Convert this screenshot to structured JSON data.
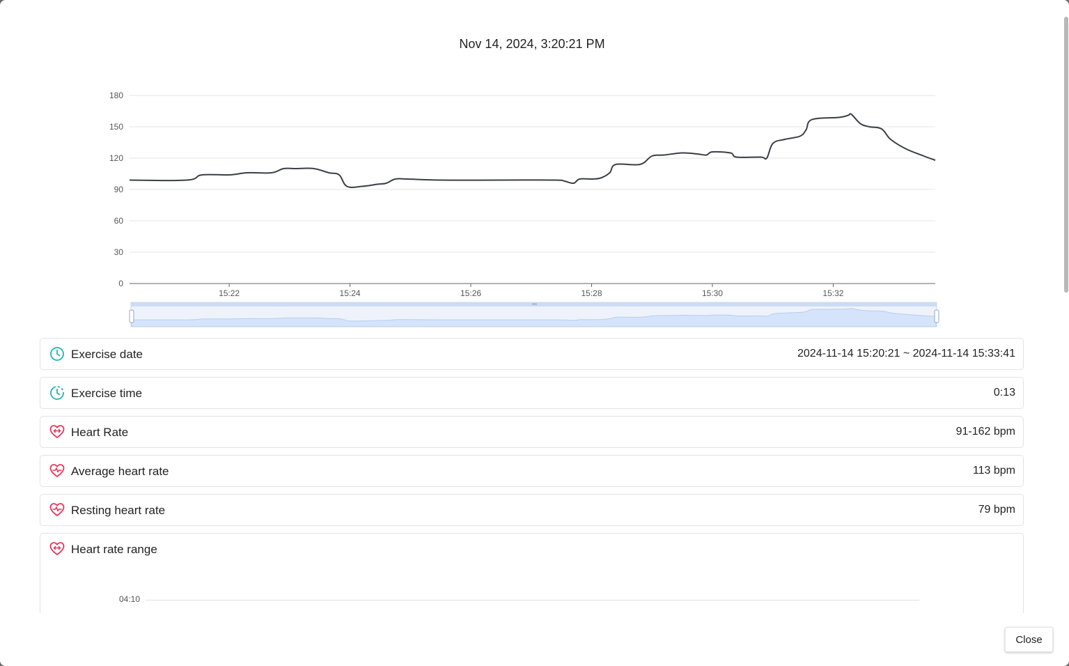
{
  "modal": {
    "title": "Nov 14, 2024, 3:20:21 PM",
    "close_label": "Close"
  },
  "colors": {
    "line": "#3b3e45",
    "grid": "#e4e4e4",
    "teal_icon": "#1fb5b0",
    "heart_icon": "#e8345a",
    "zoom_fill": "#d5e4fa",
    "zoom_border": "#b6cdf0"
  },
  "chart_data": {
    "type": "line",
    "y_ticks": [
      "0",
      "30",
      "60",
      "90",
      "120",
      "150",
      "180"
    ],
    "x_ticks": [
      "15:22",
      "15:24",
      "15:26",
      "15:28",
      "15:30",
      "15:32"
    ],
    "ylim": [
      0,
      180
    ],
    "xlim_minutes": [
      20.35,
      33.69
    ],
    "x_tick_minutes": [
      22,
      24,
      26,
      28,
      30,
      32
    ],
    "grid": true,
    "has_zoom_slider": true,
    "series": [
      {
        "x": [
          20.35,
          21.3,
          21.55,
          22.0,
          22.3,
          22.7,
          22.9,
          23.1,
          23.4,
          23.65,
          23.82,
          23.95,
          24.2,
          24.45,
          24.6,
          24.75,
          24.95,
          25.5,
          26.5,
          27.4,
          27.55,
          27.7,
          27.8,
          28.0,
          28.15,
          28.3,
          28.4,
          28.8,
          29.0,
          29.2,
          29.5,
          29.75,
          29.9,
          30.0,
          30.3,
          30.4,
          30.8,
          30.9,
          31.0,
          31.2,
          31.45,
          31.55,
          31.65,
          32.1,
          32.25,
          32.3,
          32.45,
          32.6,
          32.8,
          32.95,
          33.2,
          33.5,
          33.69
        ],
        "y": [
          99,
          99,
          104,
          104,
          106,
          106,
          110,
          110,
          110,
          106,
          104,
          93,
          93,
          95,
          96,
          100,
          100,
          99,
          99,
          99,
          98,
          96,
          100,
          100,
          101,
          106,
          114,
          114,
          122,
          123,
          125,
          124,
          123,
          126,
          125,
          121,
          121,
          120,
          134,
          138,
          141,
          147,
          157,
          159,
          161,
          162,
          153,
          150,
          148,
          138,
          129,
          122,
          118
        ]
      }
    ]
  },
  "details": [
    {
      "icon": "clock-icon",
      "label": "Exercise date",
      "value": "2024-11-14 15:20:21 ~ 2024-11-14 15:33:41"
    },
    {
      "icon": "timer-icon",
      "label": "Exercise time",
      "value": "0:13"
    },
    {
      "icon": "heart-range-icon",
      "label": "Heart Rate",
      "value": "91-162 bpm"
    },
    {
      "icon": "heart-pulse-icon",
      "label": "Average heart rate",
      "value": "113 bpm"
    },
    {
      "icon": "heart-pulse-icon",
      "label": "Resting heart rate",
      "value": "79 bpm"
    }
  ],
  "range_section": {
    "icon": "heart-range-icon",
    "label": "Heart rate range",
    "tick": "04:10"
  }
}
